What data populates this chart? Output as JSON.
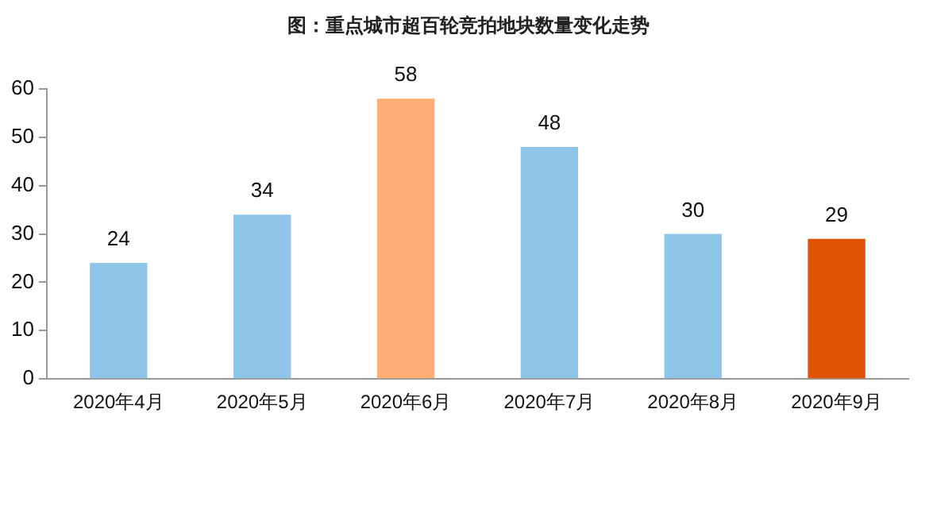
{
  "chart_data": {
    "type": "bar",
    "title": "图：重点城市超百轮竞拍地块数量变化走势",
    "categories": [
      "2020年4月",
      "2020年5月",
      "2020年6月",
      "2020年7月",
      "2020年8月",
      "2020年9月"
    ],
    "values": [
      24,
      34,
      58,
      48,
      30,
      29
    ],
    "colors": [
      "#8ec5e8",
      "#8ec5e8",
      "#ffad72",
      "#8ec5e8",
      "#8ec5e8",
      "#e05206"
    ],
    "ylim": [
      0,
      60
    ],
    "yticks": [
      0,
      10,
      20,
      30,
      40,
      50,
      60
    ],
    "grid": false,
    "legend": false,
    "data_labels": true
  }
}
